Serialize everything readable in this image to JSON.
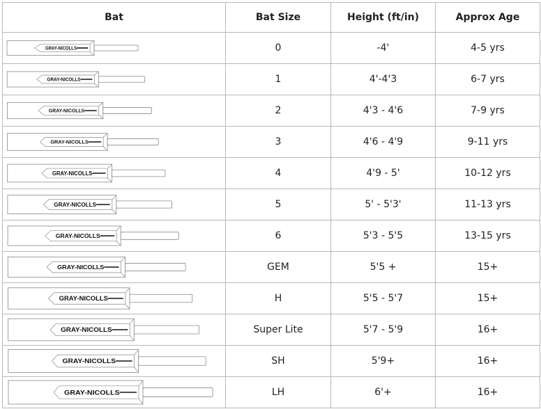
{
  "headers": [
    "Bat",
    "Bat Size",
    "Height (ft/in)",
    "Approx Age"
  ],
  "brand": "GRAY-NICOLLS",
  "rows": [
    {
      "size": "0",
      "height": "-4'",
      "age": "4-5 yrs"
    },
    {
      "size": "1",
      "height": "4'-4'3",
      "age": "6-7 yrs"
    },
    {
      "size": "2",
      "height": "4'3 - 4'6",
      "age": "7-9 yrs"
    },
    {
      "size": "3",
      "height": "4'6 - 4'9",
      "age": "9-11 yrs"
    },
    {
      "size": "4",
      "height": "4'9 - 5'",
      "age": "10-12 yrs"
    },
    {
      "size": "5",
      "height": "5' - 5'3'",
      "age": "11-13 yrs"
    },
    {
      "size": "6",
      "height": "5'3 - 5'5",
      "age": "13-15 yrs"
    },
    {
      "size": "GEM",
      "height": "5'5 +",
      "age": "15+"
    },
    {
      "size": "H",
      "height": "5'5 - 5'7",
      "age": "15+"
    },
    {
      "size": "Super Lite",
      "height": "5'7 - 5'9",
      "age": "16+"
    },
    {
      "size": "SH",
      "height": "5'9+",
      "age": "16+"
    },
    {
      "size": "LH",
      "height": "6'+",
      "age": "16+"
    }
  ]
}
